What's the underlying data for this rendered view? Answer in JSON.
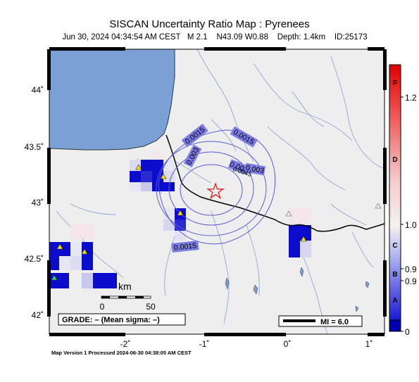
{
  "map": {
    "title": "SISCAN Uncertainty Ratio Map : Pyrenees",
    "subtitle": "Jun 30, 2024 04:34:54 AM CEST   M 2.1    N43.09 W0.88    Depth: 1.4km    ID:25173",
    "footer": "Map Version 1 Processed 2024-06-30 04:38:05 AM CEST",
    "lat_ticks": [
      "44˚",
      "43.5˚",
      "43˚",
      "42.5˚",
      "42˚"
    ],
    "lon_ticks": [
      "-2˚",
      "-1˚",
      "0˚",
      "1˚"
    ],
    "contour_labels": [
      "0.0015",
      "0.0015",
      "0.003",
      "0.003",
      "0.003",
      "0.0045",
      "0.0015"
    ],
    "scale_label": "km",
    "scale_ticks": [
      "0",
      "50"
    ],
    "grade_text": "GRADE: – (Mean sigma: –)",
    "mi_text": "MI = 6.0",
    "epicenter_marker": "star-icon",
    "station_markers": [
      "triangle-icon"
    ]
  },
  "legend": {
    "grade_letters": [
      "F",
      "D",
      "C",
      "B",
      "A"
    ],
    "values": [
      "1.2",
      "1.0",
      "0.9",
      "0.9",
      "0"
    ],
    "colors": {
      "high": "#e00000",
      "mid": "#f5f0f0",
      "low": "#1a1ad8",
      "bottom": "#0000b0"
    }
  },
  "colors": {
    "land": "#eeeeee",
    "sea": "#7aa0d6",
    "river": "#8fa9d4",
    "contour": "#5a5ad8",
    "cell_blue": "#0c0ccc"
  }
}
